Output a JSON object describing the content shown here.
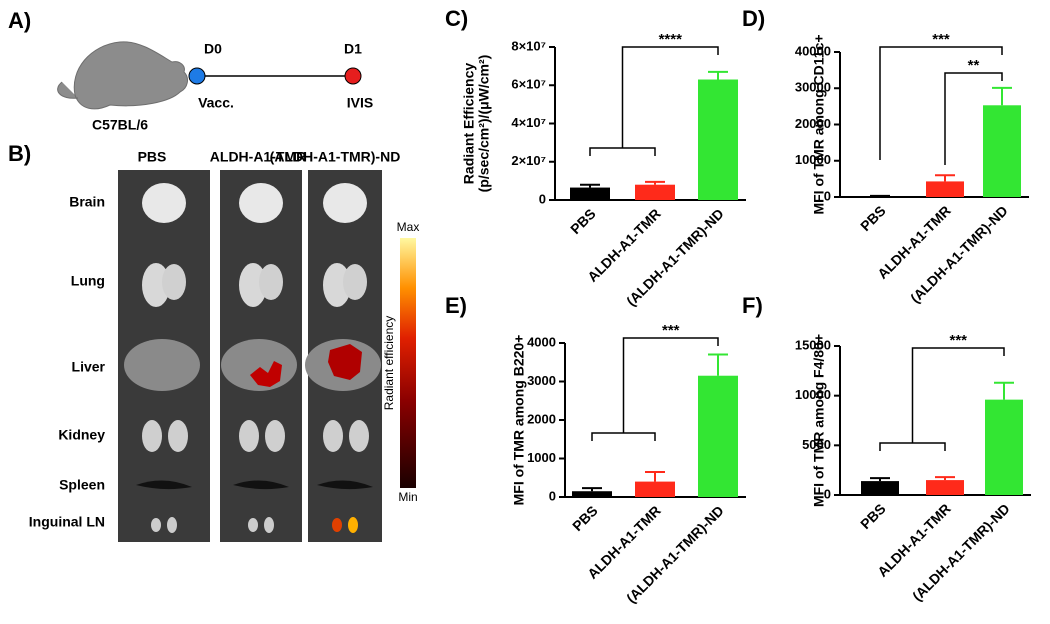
{
  "panel_a": {
    "label": "A)",
    "strain": "C57BL/6",
    "timeline": [
      {
        "day": "D0",
        "event": "Vacc."
      },
      {
        "day": "D1",
        "event": "IVIS"
      }
    ]
  },
  "panel_b": {
    "label": "B)",
    "groups": [
      "PBS",
      "ALDH-A1-TMR",
      "(ALDH-A1-TMR)-ND"
    ],
    "group_colors": [
      "#000000",
      "#ff2a1a",
      "#22b34a"
    ],
    "organs": [
      "Brain",
      "Lung",
      "Liver",
      "Kidney",
      "Spleen",
      "Inguinal LN"
    ],
    "colorbar": {
      "max": "Max",
      "min": "Min",
      "label": "Radiant efficiency"
    }
  },
  "chart_data": [
    {
      "type": "bar",
      "panel": "C)",
      "ylabel": [
        "Radiant Efficiency",
        "(p/sec/cm²)/(μW/cm²)"
      ],
      "categories": [
        "PBS",
        "ALDH-A1-TMR",
        "(ALDH-A1-TMR)-ND"
      ],
      "values": [
        6500000,
        8000000,
        63000000
      ],
      "errors": [
        1500000,
        1500000,
        4000000
      ],
      "colors": [
        "#000000",
        "#ff2a1a",
        "#33e633"
      ],
      "ylim": [
        0,
        80000000
      ],
      "yticks": [
        0,
        {
          "value": 20000000,
          "label": "2×10⁷"
        },
        {
          "value": 40000000,
          "label": "4×10⁷"
        },
        {
          "value": 60000000,
          "label": "6×10⁷"
        },
        {
          "value": 80000000,
          "label": "8×10⁷"
        }
      ],
      "significance": [
        "****"
      ]
    },
    {
      "type": "bar",
      "panel": "D)",
      "ylabel": [
        "MFI of TMR among CD11c+"
      ],
      "categories": [
        "PBS",
        "ALDH-A1-TMR",
        "(ALDH-A1-TMR)-ND"
      ],
      "values": [
        200,
        4300,
        25300
      ],
      "errors": [
        100,
        1700,
        4800
      ],
      "colors": [
        "#000000",
        "#ff2a1a",
        "#33e633"
      ],
      "ylim": [
        0,
        40000
      ],
      "yticks": [
        0,
        10000,
        20000,
        30000,
        40000
      ],
      "significance": [
        "***",
        "**"
      ]
    },
    {
      "type": "bar",
      "panel": "E)",
      "ylabel": [
        "MFI of TMR among B220+"
      ],
      "categories": [
        "PBS",
        "ALDH-A1-TMR",
        "(ALDH-A1-TMR)-ND"
      ],
      "values": [
        150,
        400,
        3150
      ],
      "errors": [
        80,
        250,
        550
      ],
      "colors": [
        "#000000",
        "#ff2a1a",
        "#33e633"
      ],
      "ylim": [
        0,
        4000
      ],
      "yticks": [
        0,
        1000,
        2000,
        3000,
        4000
      ],
      "significance": [
        "***"
      ]
    },
    {
      "type": "bar",
      "panel": "F)",
      "ylabel": [
        "MFI of TMR among F4/80+"
      ],
      "categories": [
        "PBS",
        "ALDH-A1-TMR",
        "(ALDH-A1-TMR)-ND"
      ],
      "values": [
        1400,
        1500,
        9600
      ],
      "errors": [
        300,
        300,
        1700
      ],
      "colors": [
        "#000000",
        "#ff2a1a",
        "#33e633"
      ],
      "ylim": [
        0,
        15000
      ],
      "yticks": [
        0,
        5000,
        10000,
        15000
      ],
      "significance": [
        "***"
      ]
    }
  ]
}
